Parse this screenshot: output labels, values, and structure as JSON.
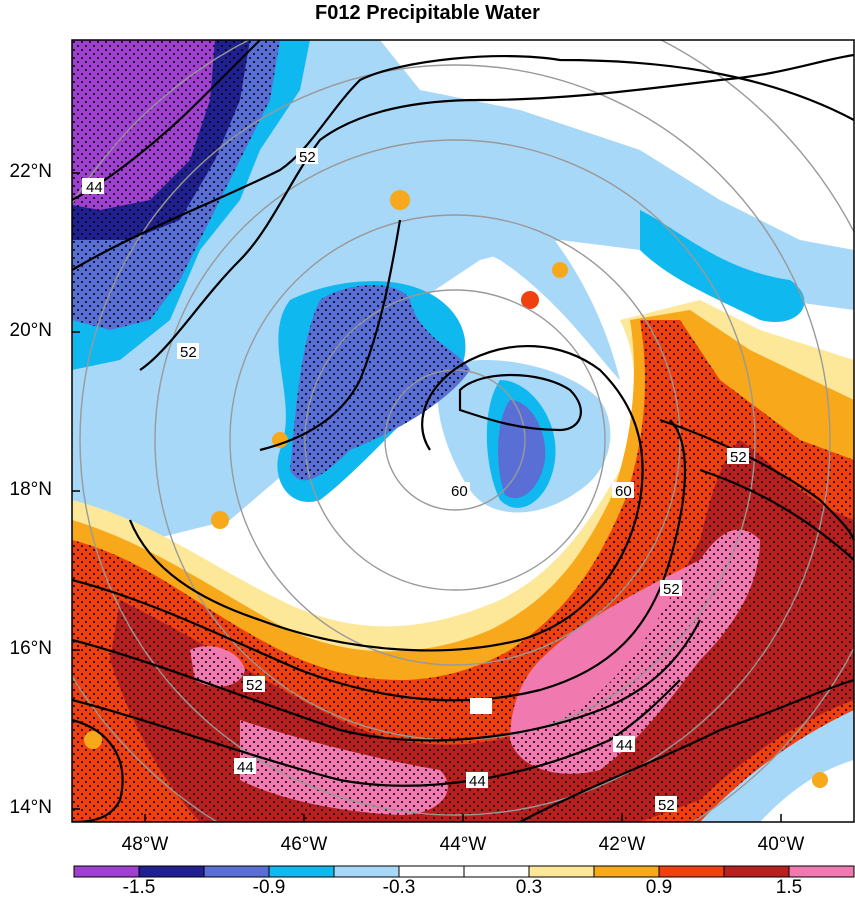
{
  "title": "F012 Precipitable Water",
  "lat_labels": [
    "22°N",
    "20°N",
    "18°N",
    "16°N",
    "14°N"
  ],
  "lon_labels": [
    "48°W",
    "46°W",
    "44°W",
    "42°W",
    "40°W"
  ],
  "colorbar": {
    "colors": [
      "#a040d0",
      "#202090",
      "#5a6fd6",
      "#10b8f0",
      "#a8d8f8",
      "#ffffff",
      "#ffffff",
      "#fde89a",
      "#f7a81b",
      "#f04010",
      "#b82020",
      "#f07ab0"
    ],
    "labels": [
      "-1.5",
      "-0.9",
      "-0.3",
      "0.3",
      "0.9",
      "1.5"
    ]
  },
  "contour_labels": [
    "44",
    "52",
    "52",
    "60",
    "60",
    "52",
    "52",
    "52",
    "44",
    "44",
    "44",
    "52"
  ]
}
